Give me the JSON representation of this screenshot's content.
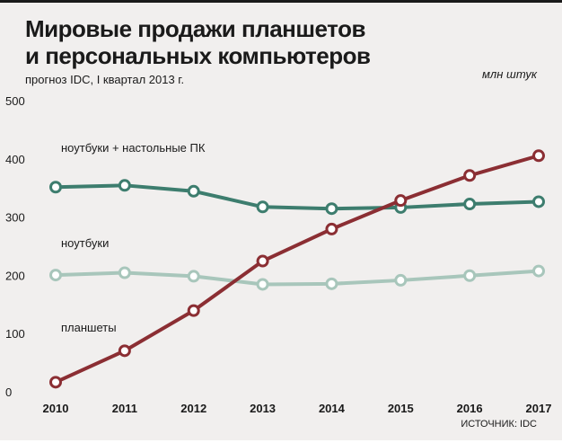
{
  "chart_data": {
    "type": "line",
    "title_line1": "Мировые продажи планшетов",
    "title_line2": "и персональных компьютеров",
    "subtitle": "прогноз IDC, I квартал 2013 г.",
    "unit": "млн штук",
    "source": "ИСТОЧНИК: IDC",
    "x": [
      "2010",
      "2011",
      "2012",
      "2013",
      "2014",
      "2015",
      "2016",
      "2017"
    ],
    "y_ticks": [
      "500",
      "400",
      "300",
      "200",
      "100",
      "0"
    ],
    "ylim": [
      0,
      500
    ],
    "grid": false,
    "series": [
      {
        "name": "ноутбуки + настольные ПК",
        "color": "#3d7d6e",
        "values": [
          353,
          356,
          346,
          319,
          316,
          318,
          324,
          328
        ]
      },
      {
        "name": "ноутбуки",
        "color": "#a8c6bb",
        "values": [
          202,
          206,
          200,
          186,
          187,
          193,
          201,
          209
        ]
      },
      {
        "name": "планшеты",
        "color": "#8b2e33",
        "values": [
          18,
          72,
          141,
          226,
          281,
          330,
          373,
          407
        ]
      }
    ]
  }
}
